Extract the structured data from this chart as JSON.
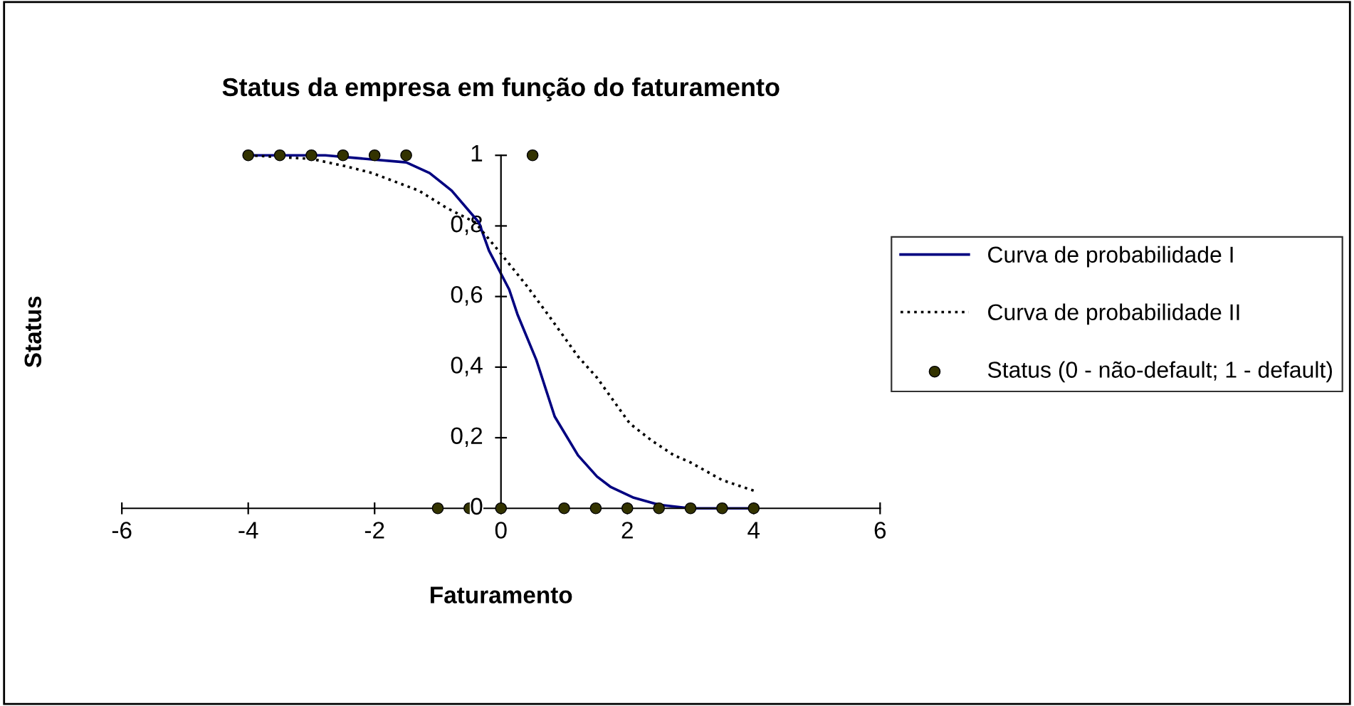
{
  "chart_data": {
    "type": "line",
    "title": "Status da empresa em função do faturamento",
    "xlabel": "Faturamento",
    "ylabel": "Status",
    "xlim": [
      -6,
      6
    ],
    "xticks": [
      -6,
      -4,
      -2,
      0,
      2,
      4,
      6
    ],
    "ylim": [
      0,
      1
    ],
    "yticks": [
      {
        "value": 0,
        "label": "0"
      },
      {
        "value": 0.2,
        "label": "0,2"
      },
      {
        "value": 0.4,
        "label": "0,4"
      },
      {
        "value": 0.6,
        "label": "0,6"
      },
      {
        "value": 0.8,
        "label": "0,8"
      },
      {
        "value": 1,
        "label": "1"
      }
    ],
    "grid": false,
    "legend": "right",
    "series": [
      {
        "name": "Curva de probabilidade I",
        "color": "#000080",
        "line_style": "solid",
        "marker": "none",
        "x": [
          -4,
          -2.78,
          -1.5,
          -1.13,
          -0.78,
          -0.35,
          -0.19,
          0.13,
          0.26,
          0.56,
          0.85,
          1.22,
          1.52,
          1.74,
          2.1,
          2.5,
          3,
          3.5,
          4
        ],
        "values": [
          1,
          1,
          0.98,
          0.95,
          0.9,
          0.81,
          0.73,
          0.62,
          0.55,
          0.42,
          0.26,
          0.15,
          0.09,
          0.06,
          0.03,
          0.01,
          0,
          0,
          0
        ]
      },
      {
        "name": "Curva de probabilidade II",
        "color": "#000000",
        "line_style": "dotted",
        "marker": "none",
        "x": [
          -4,
          -3,
          -2.48,
          -2.04,
          -1.3,
          -0.85,
          -0.41,
          -0.04,
          0.41,
          0.78,
          1.22,
          1.52,
          2.04,
          2.4,
          2.74,
          3,
          3.5,
          4
        ],
        "values": [
          1,
          0.99,
          0.97,
          0.95,
          0.9,
          0.85,
          0.81,
          0.73,
          0.63,
          0.54,
          0.43,
          0.37,
          0.24,
          0.19,
          0.15,
          0.13,
          0.08,
          0.05
        ]
      },
      {
        "name": "Status (0 - não-default; 1 - default)",
        "type": "scatter",
        "color": "#333300",
        "marker": "circle",
        "x": [
          -4,
          -3.5,
          -3,
          -2.5,
          -2,
          -1.5,
          0.5,
          -1,
          -0.5,
          0,
          1,
          1.5,
          2,
          2.5,
          3,
          3.5,
          4
        ],
        "values": [
          1,
          1,
          1,
          1,
          1,
          1,
          1,
          0,
          0,
          0,
          0,
          0,
          0,
          0,
          0,
          0,
          0
        ]
      }
    ]
  }
}
